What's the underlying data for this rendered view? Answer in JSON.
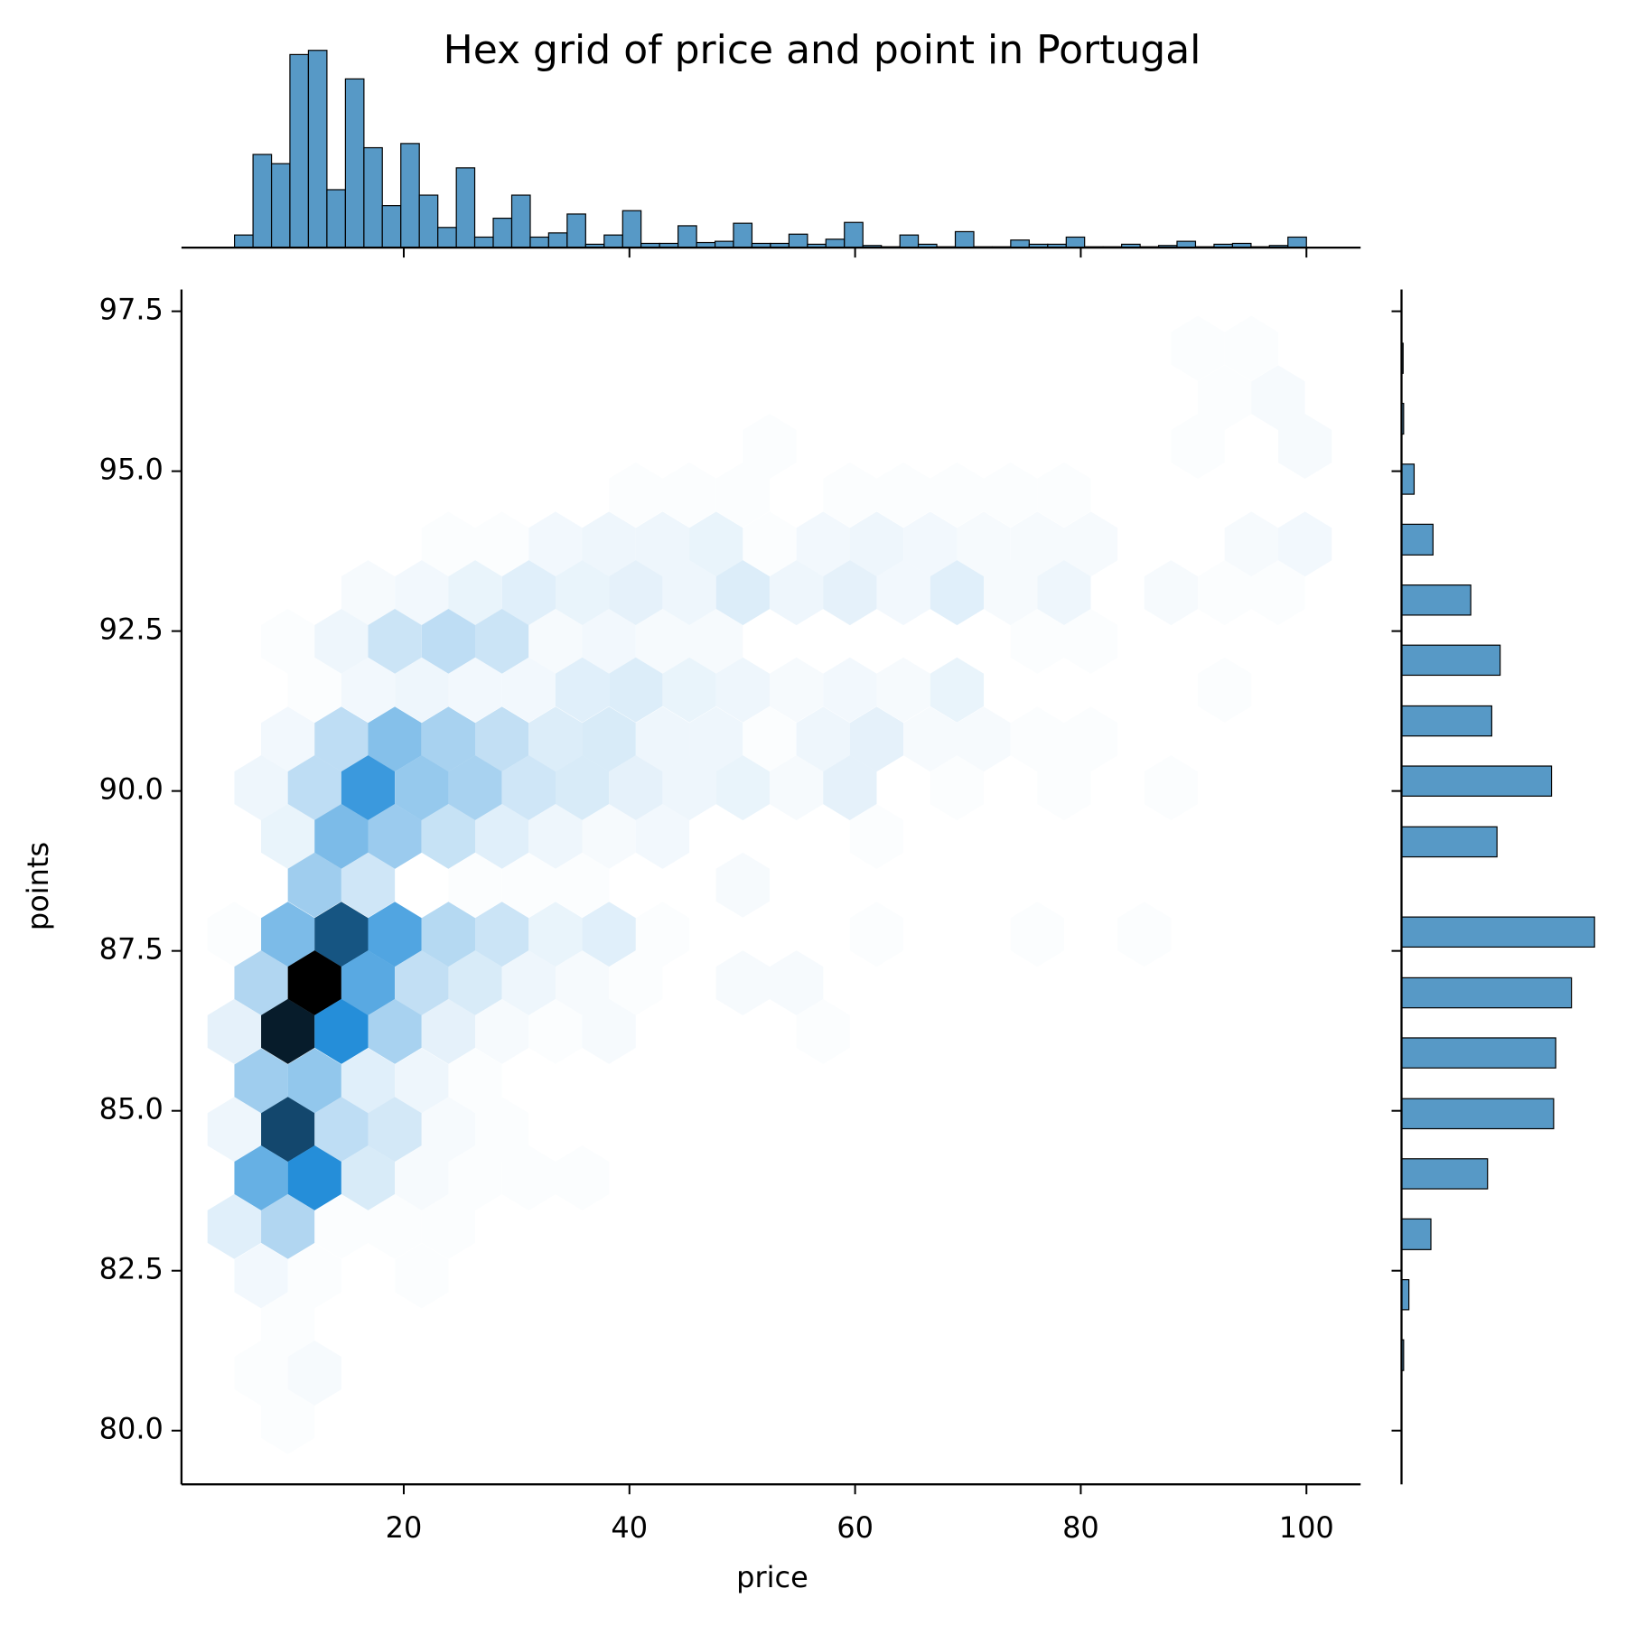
{
  "chart_data": {
    "type": "hexbin",
    "title": "Hex grid of price and point in Portugal",
    "x_label": "price",
    "y_label": "points",
    "xlim": [
      0.3,
      104.8
    ],
    "ylim": [
      79.16,
      97.84
    ],
    "xticks": [
      20,
      40,
      60,
      80,
      100
    ],
    "yticks": [
      {
        "value": 80,
        "label": "80.0"
      },
      82.5,
      {
        "value": 85,
        "label": "85.0"
      },
      87.5,
      {
        "value": 90,
        "label": "90.0"
      },
      92.5,
      {
        "value": 95,
        "label": "95.0"
      },
      97.5
    ],
    "cmap": [
      "#ffffff",
      "#258ed9",
      "#000000"
    ],
    "hexbins": [
      {
        "y": 96.92,
        "x": [
          90.38,
          95.12
        ],
        "counts": [
          1,
          1
        ]
      },
      {
        "y": 96.15,
        "x": [
          92.75,
          97.49
        ],
        "counts": [
          1,
          2
        ]
      },
      {
        "y": 95.39,
        "x": [
          52.42,
          90.38,
          99.87
        ],
        "counts": [
          1,
          1,
          2
        ]
      },
      {
        "y": 94.63,
        "x": [
          40.56,
          45.31,
          50.05,
          59.54,
          64.28,
          69.03,
          73.77,
          78.52
        ],
        "counts": [
          1,
          1,
          1,
          1,
          1,
          1,
          1,
          1
        ]
      },
      {
        "y": 93.86,
        "x": [
          23.96,
          28.7,
          33.45,
          38.19,
          42.94,
          47.68,
          52.42,
          57.17,
          61.91,
          66.66,
          71.4,
          76.15,
          80.89,
          95.12,
          99.87
        ],
        "counts": [
          1,
          1,
          3,
          4,
          4,
          5,
          1,
          3,
          4,
          3,
          2,
          2,
          2,
          2,
          3
        ]
      },
      {
        "y": 93.1,
        "x": [
          16.84,
          21.59,
          26.33,
          31.08,
          35.82,
          40.56,
          45.31,
          50.05,
          54.8,
          59.54,
          64.28,
          69.03,
          73.77,
          78.52,
          88.0,
          92.75,
          97.49
        ],
        "counts": [
          2,
          3,
          5,
          7,
          5,
          6,
          4,
          8,
          4,
          6,
          3,
          7,
          2,
          4,
          2,
          1,
          1
        ]
      },
      {
        "y": 92.34,
        "x": [
          9.73,
          14.47,
          19.21,
          23.96,
          28.7,
          33.45,
          38.19,
          42.94,
          47.68,
          76.15,
          80.89
        ],
        "counts": [
          1,
          4,
          12,
          15,
          12,
          2,
          3,
          2,
          2,
          1,
          1
        ]
      },
      {
        "y": 91.58,
        "x": [
          12.1,
          16.84,
          21.59,
          26.33,
          31.08,
          35.82,
          40.56,
          45.31,
          50.05,
          54.8,
          59.54,
          64.28,
          69.03,
          92.75
        ],
        "counts": [
          1,
          3,
          4,
          3,
          3,
          7,
          8,
          5,
          4,
          2,
          3,
          2,
          5,
          1
        ]
      },
      {
        "y": 90.81,
        "x": [
          9.73,
          14.47,
          19.21,
          23.96,
          28.7,
          33.45,
          38.19,
          42.94,
          47.68,
          52.42,
          57.17,
          61.91,
          66.66,
          71.4,
          76.15,
          80.89
        ],
        "counts": [
          3,
          15,
          28,
          20,
          14,
          8,
          9,
          4,
          4,
          1,
          4,
          6,
          2,
          2,
          1,
          1
        ]
      },
      {
        "y": 90.05,
        "x": [
          7.36,
          12.1,
          16.84,
          21.59,
          26.33,
          31.08,
          35.82,
          40.56,
          45.31,
          50.05,
          54.8,
          59.54,
          69.03,
          78.52,
          88.0
        ],
        "counts": [
          4,
          15,
          45,
          24,
          20,
          11,
          9,
          6,
          4,
          5,
          2,
          6,
          1,
          1,
          1
        ]
      },
      {
        "y": 89.29,
        "x": [
          9.73,
          14.47,
          19.21,
          23.96,
          28.7,
          33.45,
          38.19,
          42.94,
          61.91
        ],
        "counts": [
          5,
          30,
          23,
          13,
          7,
          4,
          2,
          3,
          1
        ]
      },
      {
        "y": 88.53,
        "x": [
          12.1,
          16.84,
          26.33,
          31.08,
          35.82,
          50.05
        ],
        "counts": [
          22,
          11,
          1,
          1,
          1,
          2
        ]
      },
      {
        "y": 87.76,
        "x": [
          4.98,
          9.73,
          14.47,
          19.21,
          23.96,
          28.7,
          33.45,
          38.19,
          42.94,
          61.91,
          76.15,
          85.63
        ],
        "counts": [
          1,
          30,
          70,
          40,
          17,
          12,
          5,
          7,
          1,
          1,
          1,
          1
        ]
      },
      {
        "y": 87.0,
        "x": [
          7.36,
          12.1,
          16.84,
          21.59,
          26.33,
          31.08,
          35.82,
          40.56,
          50.05,
          54.8
        ],
        "counts": [
          18,
          100,
          38,
          14,
          9,
          4,
          2,
          1,
          2,
          2
        ]
      },
      {
        "y": 86.24,
        "x": [
          4.98,
          9.73,
          14.47,
          19.21,
          23.96,
          28.7,
          33.45,
          38.19,
          57.17
        ],
        "counts": [
          6,
          90,
          50,
          20,
          6,
          2,
          1,
          2,
          1
        ]
      },
      {
        "y": 85.47,
        "x": [
          7.36,
          12.1,
          16.84,
          21.59,
          26.33
        ],
        "counts": [
          22,
          25,
          7,
          4,
          1
        ]
      },
      {
        "y": 84.71,
        "x": [
          4.98,
          9.73,
          14.47,
          19.21,
          23.96,
          28.7
        ],
        "counts": [
          4,
          75,
          15,
          10,
          2,
          1
        ]
      },
      {
        "y": 83.95,
        "x": [
          7.36,
          12.1,
          16.84,
          21.59,
          26.33,
          31.08,
          35.82
        ],
        "counts": [
          35,
          50,
          9,
          2,
          1,
          1,
          1
        ]
      },
      {
        "y": 83.19,
        "x": [
          4.98,
          9.73,
          14.47,
          19.21,
          23.96
        ],
        "counts": [
          7,
          18,
          1,
          1,
          1
        ]
      },
      {
        "y": 82.42,
        "x": [
          7.36,
          12.1,
          21.59
        ],
        "counts": [
          3,
          1,
          1
        ]
      },
      {
        "y": 81.66,
        "x": [
          9.73
        ],
        "counts": [
          1
        ]
      },
      {
        "y": 80.9,
        "x": [
          7.36,
          12.1
        ],
        "counts": [
          1,
          2
        ]
      },
      {
        "y": 80.14,
        "x": [
          9.73
        ],
        "counts": [
          1
        ]
      }
    ],
    "x_hist": {
      "bins": [
        5,
        6.64,
        8.28,
        9.91,
        11.55,
        13.19,
        14.83,
        16.47,
        18.1,
        19.74,
        21.38,
        23.02,
        24.66,
        26.29,
        27.93,
        29.57,
        31.21,
        32.84,
        34.48,
        36.12,
        37.76,
        39.4,
        41.03,
        42.67,
        44.31,
        45.95,
        47.59,
        49.22,
        50.86,
        52.5,
        54.14,
        55.78,
        57.41,
        59.05,
        60.69,
        62.33,
        63.97,
        65.6,
        67.24,
        68.88,
        70.52,
        72.16,
        73.79,
        75.43,
        77.07,
        78.71,
        80.34,
        81.98,
        83.62,
        85.26,
        86.9,
        88.53,
        90.17,
        91.81,
        93.45,
        95.09,
        96.72,
        98.36,
        100
      ],
      "counts": [
        30,
        222,
        200,
        460,
        470,
        138,
        402,
        238,
        100,
        248,
        125,
        48,
        190,
        25,
        70,
        125,
        25,
        35,
        80,
        8,
        30,
        88,
        10,
        10,
        52,
        12,
        15,
        58,
        10,
        10,
        32,
        8,
        20,
        60,
        5,
        2,
        30,
        8,
        2,
        38,
        2,
        2,
        18,
        8,
        8,
        25,
        2,
        2,
        8,
        2,
        5,
        15,
        2,
        8,
        10,
        2,
        5,
        25
      ],
      "ylim": [
        0,
        570
      ]
    },
    "y_hist": {
      "bins": [
        80,
        80.47,
        80.94,
        81.42,
        81.89,
        82.36,
        82.83,
        83.31,
        83.78,
        84.25,
        84.72,
        85.19,
        85.67,
        86.14,
        86.61,
        87.08,
        87.56,
        88.03,
        88.5,
        88.97,
        89.44,
        89.92,
        90.39,
        90.86,
        91.33,
        91.81,
        92.28,
        92.75,
        93.22,
        93.69,
        94.17,
        94.64,
        95.11,
        95.58,
        96.06,
        96.53,
        97
      ],
      "counts": [
        1,
        0,
        8,
        0,
        28,
        0,
        112,
        0,
        328,
        0,
        580,
        0,
        588,
        0,
        648,
        0,
        736,
        0,
        0,
        364,
        0,
        572,
        0,
        344,
        0,
        376,
        0,
        264,
        0,
        120,
        0,
        48,
        0,
        8,
        0,
        6
      ],
      "xlim": [
        0,
        836
      ]
    },
    "hist_color": "#5799c6",
    "edge_color": "#000000"
  }
}
